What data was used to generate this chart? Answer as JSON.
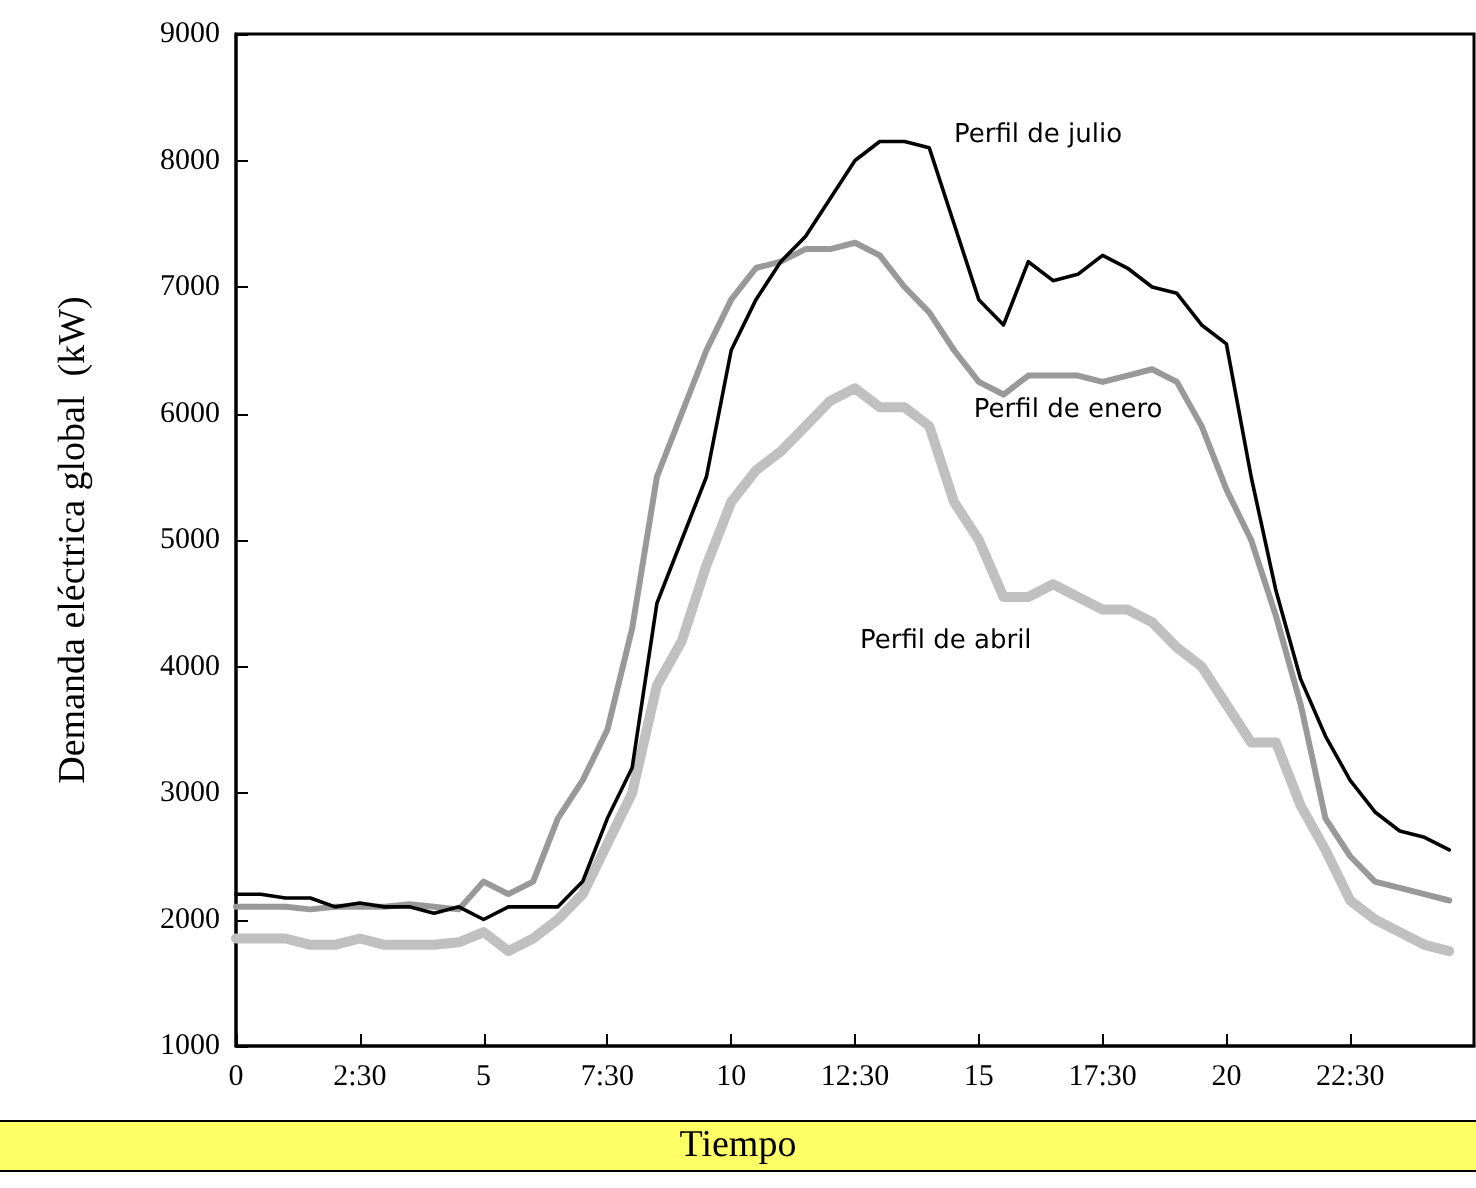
{
  "chart_data": {
    "type": "line",
    "xlabel": "Tiempo",
    "ylabel": "Demanda eléctrica global  (kW)",
    "x": [
      0,
      0.5,
      1,
      1.5,
      2,
      2.5,
      3,
      3.5,
      4,
      4.5,
      5,
      5.5,
      6,
      6.5,
      7,
      7.5,
      8,
      8.5,
      9,
      9.5,
      10,
      10.5,
      11,
      11.5,
      12,
      12.5,
      13,
      13.5,
      14,
      14.5,
      15,
      15.5,
      16,
      16.5,
      17,
      17.5,
      18,
      18.5,
      19,
      19.5,
      20,
      20.5,
      21,
      21.5,
      22,
      22.5,
      23,
      23.5,
      24,
      24.5
    ],
    "series": [
      {
        "name": "Perfil de julio",
        "color": "#000000",
        "values": [
          2200,
          2200,
          2170,
          2170,
          2100,
          2130,
          2100,
          2100,
          2050,
          2100,
          2000,
          2100,
          2100,
          2100,
          2300,
          2800,
          3200,
          4500,
          5000,
          5500,
          6500,
          6900,
          7200,
          7400,
          7700,
          8000,
          8150,
          8150,
          8100,
          7500,
          6900,
          6700,
          7200,
          7050,
          7100,
          7250,
          7150,
          7000,
          6950,
          6700,
          6550,
          5500,
          4600,
          3900,
          3450,
          3100,
          2850,
          2700,
          2650,
          2550
        ]
      },
      {
        "name": "Perfil de enero",
        "color": "#999999",
        "values": [
          2100,
          2100,
          2100,
          2080,
          2100,
          2100,
          2100,
          2120,
          2100,
          2080,
          2300,
          2200,
          2300,
          2800,
          3100,
          3500,
          4300,
          5500,
          6000,
          6500,
          6900,
          7150,
          7200,
          7300,
          7300,
          7350,
          7250,
          7000,
          6800,
          6500,
          6250,
          6150,
          6300,
          6300,
          6300,
          6250,
          6300,
          6350,
          6250,
          5900,
          5400,
          5000,
          4400,
          3700,
          2800,
          2500,
          2300,
          2250,
          2200,
          2150
        ]
      },
      {
        "name": "Perfil de abril",
        "color": "#c0c0c0",
        "values": [
          1850,
          1850,
          1850,
          1800,
          1800,
          1850,
          1800,
          1800,
          1800,
          1820,
          1900,
          1750,
          1850,
          2000,
          2200,
          2600,
          3000,
          3850,
          4200,
          4800,
          5300,
          5550,
          5700,
          5900,
          6100,
          6200,
          6050,
          6050,
          5900,
          5300,
          5000,
          4550,
          4550,
          4650,
          4550,
          4450,
          4450,
          4350,
          4150,
          4000,
          3700,
          3400,
          3400,
          2900,
          2550,
          2150,
          2000,
          1900,
          1800,
          1750
        ]
      }
    ],
    "xlim": [
      0,
      25
    ],
    "xticks": [
      {
        "value": 0,
        "label": "0"
      },
      {
        "value": 2.5,
        "label": "2:30"
      },
      {
        "value": 5,
        "label": "5"
      },
      {
        "value": 7.5,
        "label": "7:30"
      },
      {
        "value": 10,
        "label": "10"
      },
      {
        "value": 12.5,
        "label": "12:30"
      },
      {
        "value": 15,
        "label": "15"
      },
      {
        "value": 17.5,
        "label": "17:30"
      },
      {
        "value": 20,
        "label": "20"
      },
      {
        "value": 22.5,
        "label": "22:30"
      }
    ],
    "ylim": [
      1000,
      9000
    ],
    "yticks": [
      1000,
      2000,
      3000,
      4000,
      5000,
      6000,
      7000,
      8000,
      9000
    ],
    "grid": false,
    "legend": false,
    "marker": "none",
    "line_style": "solid"
  }
}
